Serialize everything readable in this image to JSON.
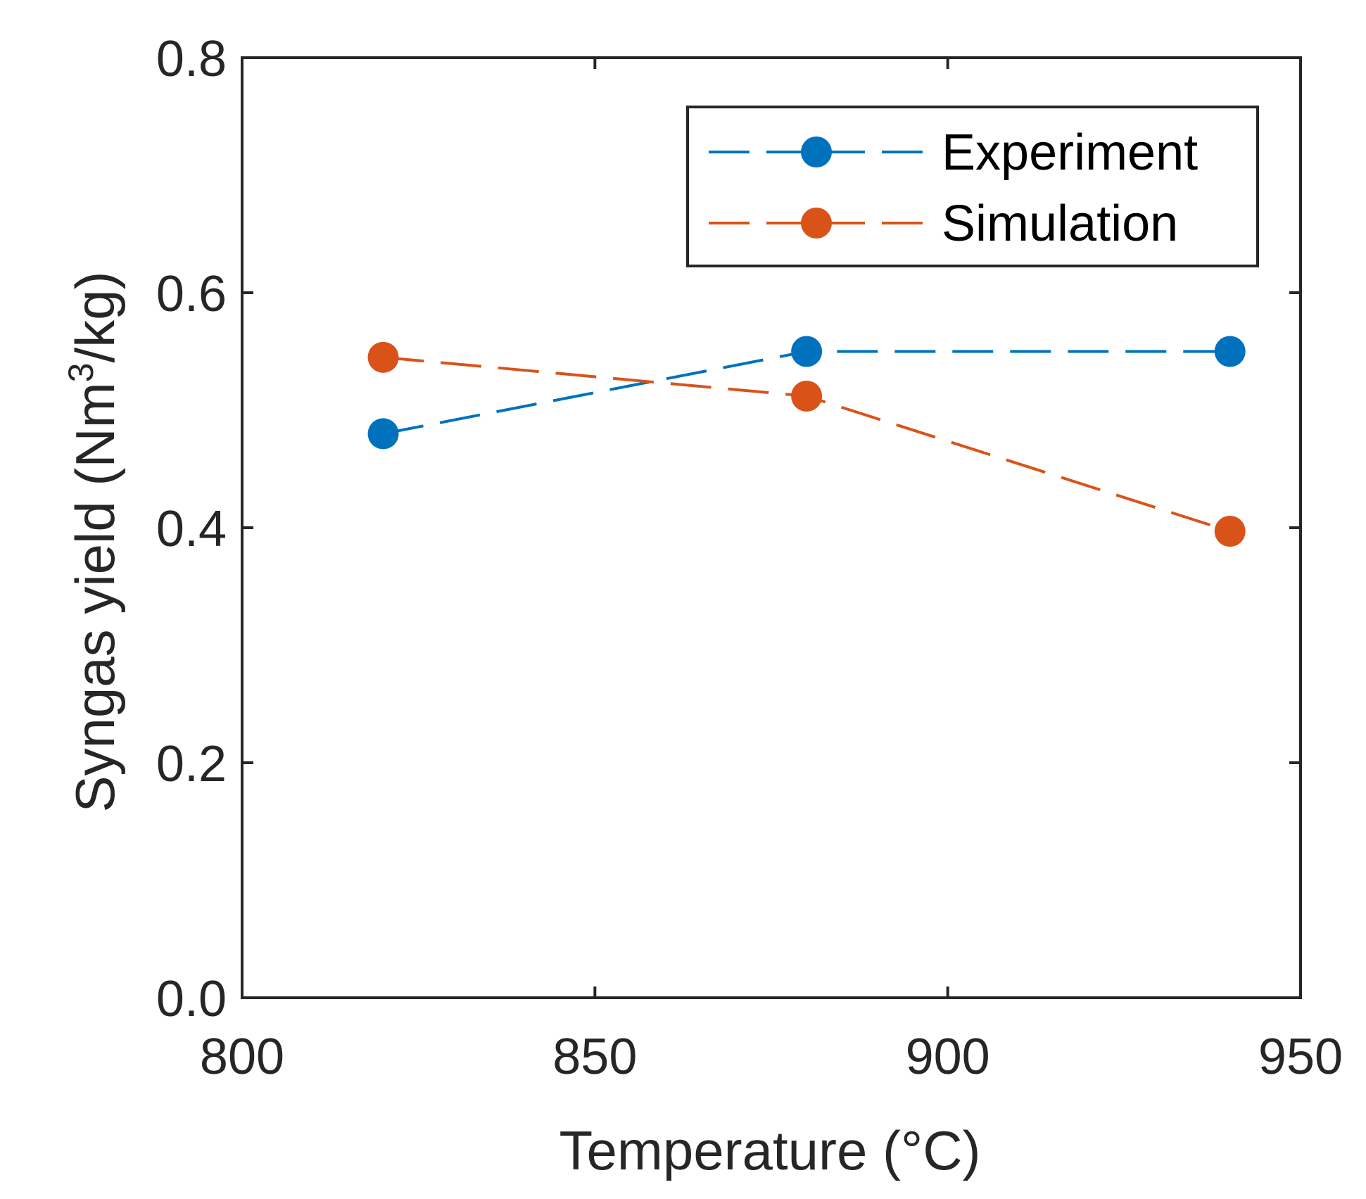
{
  "chart_data": {
    "type": "line",
    "title": "",
    "xlabel": "Temperature (°C)",
    "ylabel_main": "Syngas yield (Nm",
    "ylabel_sup": "3",
    "ylabel_tail": "/kg)",
    "xlim": [
      800,
      950
    ],
    "ylim": [
      0,
      0.8
    ],
    "xticks": [
      800,
      850,
      900,
      950
    ],
    "xtick_labels": [
      "800",
      "850",
      "900",
      "950"
    ],
    "yticks": [
      0,
      0.2,
      0.4,
      0.6,
      0.8
    ],
    "ytick_labels": [
      "0.0",
      "0.2",
      "0.4",
      "0.6",
      "0.8"
    ],
    "legend_position": "top-right",
    "series": [
      {
        "name": "Experiment",
        "color": "#0072BD",
        "x": [
          820,
          880,
          940
        ],
        "y": [
          0.48,
          0.55,
          0.55
        ]
      },
      {
        "name": "Simulation",
        "color": "#D95319",
        "x": [
          820,
          880,
          940
        ],
        "y": [
          0.545,
          0.512,
          0.397
        ]
      }
    ]
  }
}
